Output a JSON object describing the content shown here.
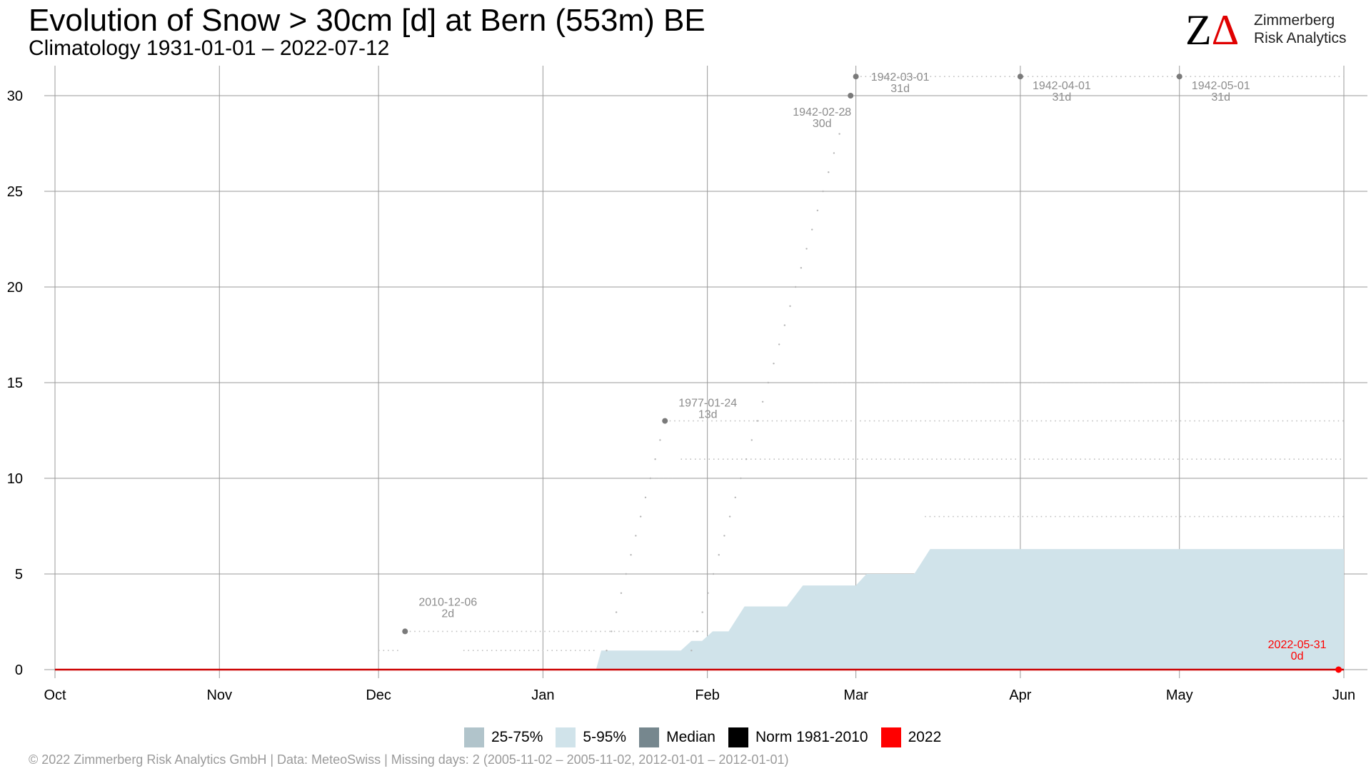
{
  "header": {
    "title": "Evolution of Snow > 30cm [d] at Bern (553m) BE",
    "subtitle": "Climatology 1931-01-01 – 2022-07-12"
  },
  "logo": {
    "mark_z": "Z",
    "mark_delta": "Δ",
    "line1": "Zimmerberg",
    "line2": "Risk Analytics"
  },
  "legend": {
    "items": [
      {
        "label": "25-75%",
        "color": "#b1c4cb"
      },
      {
        "label": "5-95%",
        "color": "#d0e3ea"
      },
      {
        "label": "Median",
        "color": "#76878e"
      },
      {
        "label": "Norm 1981-2010",
        "color": "#000000"
      },
      {
        "label": "2022",
        "color": "#ff0000"
      }
    ]
  },
  "footer": {
    "text": "©  2022 Zimmerberg Risk Analytics GmbH | Data: MeteoSwiss | Missing days: 2 (2005-11-02 – 2005-11-02, 2012-01-01 – 2012-01-01)"
  },
  "chart_data": {
    "type": "area",
    "title": "Evolution of Snow > 30cm [d] at Bern (553m) BE",
    "subtitle": "Climatology 1931-01-01 – 2022-07-12",
    "xlabel": "",
    "ylabel": "",
    "x_ticks": [
      "Oct",
      "Nov",
      "Dec",
      "Jan",
      "Feb",
      "Mar",
      "Apr",
      "May",
      "Jun"
    ],
    "x_tick_days": [
      0,
      31,
      61,
      92,
      123,
      151,
      182,
      212,
      243
    ],
    "y_ticks": [
      0,
      5,
      10,
      15,
      20,
      25,
      30
    ],
    "ylim": [
      0,
      31
    ],
    "grid": true,
    "legend_position": "bottom",
    "band_5_95": {
      "x_day": [
        102,
        103,
        118,
        120,
        122,
        124,
        127,
        130,
        138,
        141,
        151,
        153,
        162,
        165,
        243
      ],
      "upper": [
        0,
        1,
        1,
        1.5,
        1.5,
        2,
        2,
        3.3,
        3.3,
        4.4,
        4.4,
        5,
        5,
        6.3,
        6.3
      ]
    },
    "band_25_75": {
      "x_day": [
        0,
        243
      ],
      "upper": [
        0,
        0
      ]
    },
    "median": {
      "x_day": [
        0,
        243
      ],
      "y": [
        0,
        0
      ]
    },
    "series_2022": {
      "x_day": [
        0,
        243
      ],
      "y": [
        0,
        0
      ]
    },
    "record_points": [
      {
        "day": 66,
        "value": 2,
        "date": "2010-12-06",
        "label": "2d"
      },
      {
        "day": 115,
        "value": 13,
        "date": "1977-01-24",
        "label": "13d"
      },
      {
        "day": 150,
        "value": 30,
        "date": "1942-02-28",
        "label": "30d"
      },
      {
        "day": 151,
        "value": 31,
        "date": "1942-03-01",
        "label": "31d"
      },
      {
        "day": 182,
        "value": 31,
        "date": "1942-04-01",
        "label": "31d"
      },
      {
        "day": 212,
        "value": 31,
        "date": "1942-05-01",
        "label": "31d"
      }
    ],
    "current_point": {
      "day": 242,
      "value": 0,
      "date": "2022-05-31",
      "label": "0d"
    },
    "dotted_levels": [
      {
        "value": 1,
        "from_day": 61,
        "to_day": 65
      },
      {
        "value": 1,
        "from_day": 77,
        "to_day": 102
      },
      {
        "value": 2,
        "from_day": 66,
        "to_day": 123
      },
      {
        "value": 10,
        "from_day": 112,
        "to_day": 117
      },
      {
        "value": 11,
        "from_day": 118,
        "to_day": 243
      },
      {
        "value": 13,
        "from_day": 115,
        "to_day": 243
      },
      {
        "value": 15,
        "from_day": 143,
        "to_day": 243
      },
      {
        "value": 8,
        "from_day": 164,
        "to_day": 243
      },
      {
        "value": 31,
        "from_day": 151,
        "to_day": 243
      }
    ],
    "record_ramp_1942": {
      "from_day": 120,
      "to_day": 151,
      "from_value": 1,
      "to_value": 31
    },
    "record_ramp_1977": {
      "from_day": 104,
      "to_day": 115,
      "from_value": 1,
      "to_value": 13
    }
  }
}
